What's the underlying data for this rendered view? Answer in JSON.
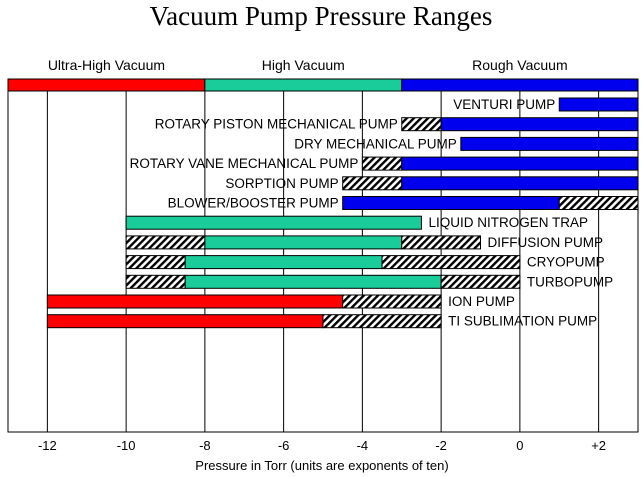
{
  "chart_data": {
    "type": "bar",
    "title": "Vacuum Pump Pressure Ranges",
    "xlabel": "Pressure in Torr (units are exponents of ten)",
    "xlim": [
      -13,
      3
    ],
    "x_ticks": [
      -12,
      -10,
      -8,
      -6,
      -4,
      -2,
      0,
      2
    ],
    "x_tick_labels": [
      "-12",
      "-10",
      "-8",
      "-6",
      "-4",
      "-2",
      "0",
      "+2"
    ],
    "grid": "vertical",
    "colors": {
      "ultra_high_vacuum": "#ff0000",
      "high_vacuum": "#19cc99",
      "rough_vacuum": "#0000ee",
      "extended_range": "hatched"
    },
    "bands": [
      {
        "label": "Ultra-High Vacuum",
        "start": -13,
        "end": -8,
        "color": "#ff0000"
      },
      {
        "label": "High Vacuum",
        "start": -8,
        "end": -3,
        "color": "#19cc99"
      },
      {
        "label": "Rough Vacuum",
        "start": -3,
        "end": 3,
        "color": "#0000ee"
      }
    ],
    "pumps": [
      {
        "label": "VENTURI PUMP",
        "segments": [
          {
            "start": 1,
            "end": 3,
            "fill": "rough"
          }
        ]
      },
      {
        "label": "ROTARY PISTON MECHANICAL PUMP",
        "segments": [
          {
            "start": -3,
            "end": -2,
            "fill": "hatched"
          },
          {
            "start": -2,
            "end": 3,
            "fill": "rough"
          }
        ]
      },
      {
        "label": "DRY MECHANICAL PUMP",
        "segments": [
          {
            "start": -1.5,
            "end": 3,
            "fill": "rough"
          }
        ]
      },
      {
        "label": "ROTARY VANE MECHANICAL PUMP",
        "segments": [
          {
            "start": -4,
            "end": -3,
            "fill": "hatched"
          },
          {
            "start": -3,
            "end": 3,
            "fill": "rough"
          }
        ]
      },
      {
        "label": "SORPTION PUMP",
        "segments": [
          {
            "start": -4.5,
            "end": -3,
            "fill": "hatched"
          },
          {
            "start": -3,
            "end": 3,
            "fill": "rough"
          }
        ]
      },
      {
        "label": "BLOWER/BOOSTER PUMP",
        "segments": [
          {
            "start": -4.5,
            "end": 1,
            "fill": "rough"
          },
          {
            "start": 1,
            "end": 3,
            "fill": "hatched"
          }
        ]
      },
      {
        "label": "LIQUID NITROGEN TRAP",
        "segments": [
          {
            "start": -10,
            "end": -2.5,
            "fill": "high"
          }
        ]
      },
      {
        "label": "DIFFUSION PUMP",
        "segments": [
          {
            "start": -10,
            "end": -8,
            "fill": "hatched"
          },
          {
            "start": -8,
            "end": -3,
            "fill": "high"
          },
          {
            "start": -3,
            "end": -1,
            "fill": "hatched"
          }
        ]
      },
      {
        "label": "CRYOPUMP",
        "segments": [
          {
            "start": -10,
            "end": -8.5,
            "fill": "hatched"
          },
          {
            "start": -8.5,
            "end": -3.5,
            "fill": "high"
          },
          {
            "start": -3.5,
            "end": 0,
            "fill": "hatched"
          }
        ]
      },
      {
        "label": "TURBOPUMP",
        "segments": [
          {
            "start": -10,
            "end": -8.5,
            "fill": "hatched"
          },
          {
            "start": -8.5,
            "end": -2,
            "fill": "high"
          },
          {
            "start": -2,
            "end": 0,
            "fill": "hatched"
          }
        ]
      },
      {
        "label": "ION PUMP",
        "segments": [
          {
            "start": -12,
            "end": -4.5,
            "fill": "uhv"
          },
          {
            "start": -4.5,
            "end": -2,
            "fill": "hatched"
          }
        ]
      },
      {
        "label": "TI SUBLIMATION PUMP",
        "segments": [
          {
            "start": -12,
            "end": -5,
            "fill": "uhv"
          },
          {
            "start": -5,
            "end": -2,
            "fill": "hatched"
          }
        ]
      }
    ]
  }
}
